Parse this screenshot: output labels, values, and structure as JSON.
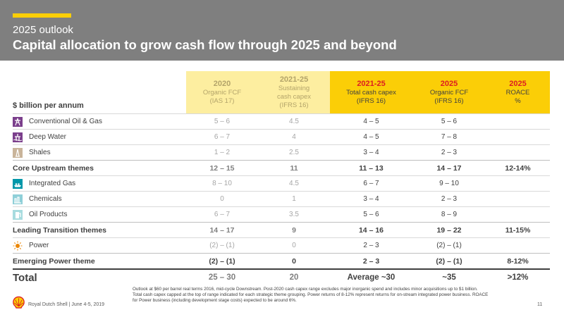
{
  "header": {
    "subtitle": "2025 outlook",
    "title": "Capital allocation to grow cash flow through 2025 and beyond"
  },
  "table": {
    "unit_label": "$ billion per annum",
    "columns": [
      {
        "year": "2020",
        "line1": "Organic FCF",
        "line2": "(IAS 17)",
        "line3": ""
      },
      {
        "year": "2021-25",
        "line1": "Sustaining",
        "line2": "cash capex",
        "line3": "(IFRS 16)"
      },
      {
        "year": "2021-25",
        "line1": "Total cash capex",
        "line2": "(IFRS 16)",
        "line3": ""
      },
      {
        "year": "2025",
        "line1": "Organic FCF",
        "line2": "(IFRS 16)",
        "line3": ""
      },
      {
        "year": "2025",
        "line1": "ROACE",
        "line2": "%",
        "line3": ""
      }
    ],
    "rows": [
      {
        "label": "Conventional Oil & Gas",
        "icon": "oil-rig-icon",
        "v": [
          "5 – 6",
          "4.5",
          "4 – 5",
          "5 – 6",
          ""
        ]
      },
      {
        "label": "Deep Water",
        "icon": "deep-water-platform-icon",
        "v": [
          "6 – 7",
          "4",
          "4 – 5",
          "7 – 8",
          ""
        ]
      },
      {
        "label": "Shales",
        "icon": "shale-rig-icon",
        "v": [
          "1 – 2",
          "2.5",
          "3 – 4",
          "2 – 3",
          ""
        ]
      },
      {
        "label": "Core Upstream themes",
        "v": [
          "12 – 15",
          "11",
          "11 – 13",
          "14 – 17",
          "12-14%"
        ]
      },
      {
        "label": "Integrated Gas",
        "icon": "lng-ship-icon",
        "v": [
          "8 – 10",
          "4.5",
          "6 – 7",
          "9 – 10",
          ""
        ]
      },
      {
        "label": "Chemicals",
        "icon": "chemicals-plant-icon",
        "v": [
          "0",
          "1",
          "3 – 4",
          "2 – 3",
          ""
        ]
      },
      {
        "label": "Oil Products",
        "icon": "fuel-pump-icon",
        "v": [
          "6 – 7",
          "3.5",
          "5 – 6",
          "8 – 9",
          ""
        ]
      },
      {
        "label": "Leading Transition themes",
        "v": [
          "14 – 17",
          "9",
          "14 – 16",
          "19 – 22",
          "11-15%"
        ]
      },
      {
        "label": "Power",
        "icon": "sun-icon",
        "v": [
          "(2) – (1)",
          "0",
          "2 – 3",
          "(2) – (1)",
          ""
        ]
      },
      {
        "label": "Emerging Power theme",
        "v": [
          "(2) – (1)",
          "0",
          "2 – 3",
          "(2) – (1)",
          "8-12%"
        ]
      },
      {
        "label": "Total",
        "v": [
          "25 – 30",
          "20",
          "Average ~30",
          "~35",
          ">12%"
        ]
      }
    ]
  },
  "footnote": {
    "line1": "Outlook at $60 per barrel real terms 2016, mid-cycle Downstream. Post-2020 cash capex range excludes major inorganic spend and includes minor acquisitions up to $1 billion.",
    "line2": "Total cash capex capped at the top of range indicated for each strategic theme grouping. Power returns of 8-12% represent returns for on-stream integrated power business. ROACE",
    "line3": "for Power business (including development stage costs) expected to be around 6%."
  },
  "footer": {
    "text": "Royal Dutch Shell | June 4-5, 2019",
    "page": "11"
  },
  "colors": {
    "header_bg": "#7f7f7f",
    "accent_yellow": "#fbce07",
    "light_yellow": "#fdeea0",
    "red_year": "#dd1d21"
  }
}
